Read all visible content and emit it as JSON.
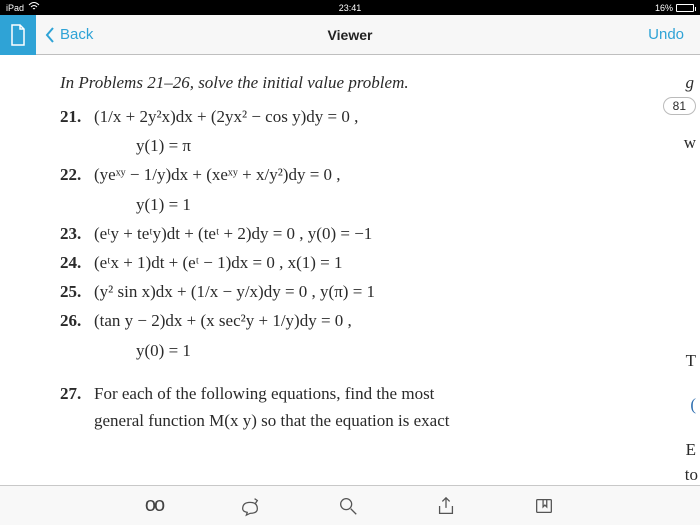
{
  "status": {
    "carrier": "iPad",
    "time": "23:41",
    "battery_pct": "16%",
    "battery_level": 16
  },
  "nav": {
    "back_label": "Back",
    "title": "Viewer",
    "undo_label": "Undo"
  },
  "content": {
    "header": "In Problems 21–26, solve the initial value problem.",
    "problems": [
      {
        "num": "21.",
        "body": "(1/x + 2y²x)dx + (2yx² − cos y)dy = 0 ,",
        "cond": "y(1) = π"
      },
      {
        "num": "22.",
        "body": "(yeˣʸ − 1/y)dx + (xeˣʸ + x/y²)dy = 0 ,",
        "cond": "y(1) = 1"
      },
      {
        "num": "23.",
        "body": "(eᵗy + teᵗy)dt + (teᵗ + 2)dy = 0 ,      y(0) = −1"
      },
      {
        "num": "24.",
        "body": "(eᵗx + 1)dt + (eᵗ − 1)dx = 0 ,      x(1) = 1"
      },
      {
        "num": "25.",
        "body": "(y² sin x)dx + (1/x − y/x)dy = 0 ,      y(π) = 1"
      },
      {
        "num": "26.",
        "body": "(tan y − 2)dx + (x sec²y + 1/y)dy = 0 ,",
        "cond": "y(0) = 1"
      }
    ],
    "p27": {
      "num": "27.",
      "body": "For each of the following equations, find the most"
    },
    "cut": "general function M(x  y) so that the equation is exact",
    "side": {
      "g": "g",
      "badge": "81",
      "w": "w",
      "T": "T",
      "paren": "(",
      "E": "E",
      "to": "to"
    }
  },
  "colors": {
    "accent": "#2fa3d6",
    "text": "#2a2a2a",
    "border": "#bfbfbf",
    "toolbar_icon": "#555555"
  }
}
